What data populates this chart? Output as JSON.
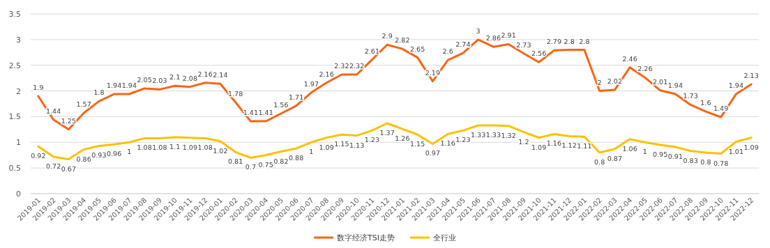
{
  "chart_data": {
    "type": "line",
    "categories": [
      "2019-01",
      "2019-02",
      "2019-03",
      "2019-04",
      "2019-05",
      "2019-06",
      "2019-07",
      "2019-08",
      "2019-09",
      "2019-10",
      "2019-11",
      "2019-12",
      "2020-01",
      "2020-02",
      "2020-03",
      "2020-04",
      "2020-05",
      "2020-06",
      "2020-07",
      "2020-08",
      "2020-09",
      "2020-10",
      "2020-11",
      "2020-12",
      "2021-01",
      "2021-02",
      "2021-03",
      "2021-04",
      "2021-05",
      "2021-06",
      "2021-07",
      "2021-08",
      "2021-09",
      "2021-10",
      "2021-11",
      "2021-12",
      "2022-01",
      "2022-02",
      "2022-03",
      "2022-04",
      "2022-05",
      "2022-06",
      "2022-07",
      "2022-08",
      "2022-09",
      "2022-10",
      "2022-11",
      "2022-12"
    ],
    "series": [
      {
        "name": "数字经济TSI走势",
        "color": "#fa6414",
        "values": [
          1.9,
          1.44,
          1.25,
          1.57,
          1.8,
          1.94,
          1.94,
          2.05,
          2.03,
          2.1,
          2.08,
          2.16,
          2.14,
          1.78,
          1.41,
          1.41,
          1.56,
          1.71,
          1.97,
          2.16,
          2.32,
          2.32,
          2.61,
          2.9,
          2.82,
          2.65,
          2.19,
          2.6,
          2.74,
          3,
          2.86,
          2.91,
          2.73,
          2.56,
          2.79,
          2.8,
          2.8,
          2,
          2.02,
          2.46,
          2.26,
          2.01,
          1.94,
          1.73,
          1.6,
          1.49,
          1.94,
          2.13
        ]
      },
      {
        "name": "全行业",
        "color": "#ffc000",
        "values": [
          0.92,
          0.72,
          0.67,
          0.86,
          0.93,
          0.96,
          1,
          1.08,
          1.08,
          1.1,
          1.09,
          1.08,
          1.02,
          0.81,
          0.7,
          0.75,
          0.82,
          0.88,
          1,
          1.09,
          1.15,
          1.13,
          1.23,
          1.37,
          1.26,
          1.15,
          0.97,
          1.16,
          1.23,
          1.33,
          1.33,
          1.32,
          1.2,
          1.09,
          1.16,
          1.12,
          1.11,
          0.8,
          0.87,
          1.06,
          1,
          0.95,
          0.91,
          0.83,
          0.8,
          0.78,
          1.01,
          1.09
        ]
      }
    ],
    "ylim": [
      0,
      3.5
    ],
    "yticks": [
      0,
      0.5,
      1,
      1.5,
      2,
      2.5,
      3,
      3.5
    ],
    "grid": "y",
    "legend": "bottom",
    "data_labels": true,
    "marker": "none",
    "line_style": "solid"
  }
}
